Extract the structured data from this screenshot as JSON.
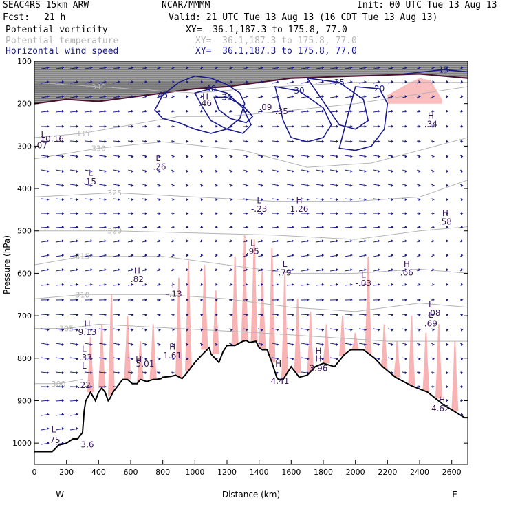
{
  "header": {
    "model": "SEAC4RS 15km ARW",
    "org": "NCAR/MMMM",
    "init": "Init: 00 UTC Tue 13 Aug 13",
    "fcst_label": "Fcst:",
    "fcst_value": "21 h",
    "valid": "Valid: 21 UTC Tue 13 Aug 13 (16 CDT Tue 13 Aug 13)"
  },
  "fields": [
    {
      "name": "Potential vorticity",
      "color": "#000000",
      "xy": "XY=  36.1,187.3 to 175.8, 77.0"
    },
    {
      "name": "Potential temperature",
      "color": "#b4b4b4",
      "xy": "XY=  36.1,187.3 to 175.8, 77.0"
    },
    {
      "name": "Horizontal wind speed",
      "color": "#1a1a8a",
      "xy": "XY=  36.1,187.3 to 175.8, 77.0"
    }
  ],
  "chart_data": {
    "type": "cross-section",
    "xlabel": "Distance (km)",
    "ylabel": "Pressure (hPa)",
    "xlim": [
      0,
      2700
    ],
    "ylim": [
      1050,
      100
    ],
    "x_ticks": [
      0,
      200,
      400,
      600,
      800,
      1000,
      1200,
      1400,
      1600,
      1800,
      2000,
      2200,
      2400,
      2600
    ],
    "y_ticks": [
      100,
      200,
      300,
      400,
      500,
      600,
      700,
      800,
      900,
      1000
    ],
    "west_label": "W",
    "east_label": "E",
    "colors": {
      "theta": "#b4b4b4",
      "wind": "#1a1a8a",
      "shading_pink": "#f8b4b4",
      "terrain": "#000000",
      "annotation": "#3a1a5a"
    },
    "terrain": [
      [
        0,
        1020
      ],
      [
        110,
        1020
      ],
      [
        125,
        1015
      ],
      [
        150,
        1005
      ],
      [
        200,
        1000
      ],
      [
        240,
        990
      ],
      [
        270,
        990
      ],
      [
        300,
        975
      ],
      [
        310,
        925
      ],
      [
        320,
        900
      ],
      [
        350,
        880
      ],
      [
        380,
        900
      ],
      [
        400,
        880
      ],
      [
        420,
        870
      ],
      [
        440,
        880
      ],
      [
        460,
        900
      ],
      [
        470,
        895
      ],
      [
        490,
        880
      ],
      [
        520,
        865
      ],
      [
        550,
        850
      ],
      [
        580,
        850
      ],
      [
        610,
        860
      ],
      [
        640,
        860
      ],
      [
        660,
        850
      ],
      [
        700,
        855
      ],
      [
        740,
        850
      ],
      [
        760,
        850
      ],
      [
        790,
        848
      ],
      [
        800,
        845
      ],
      [
        850,
        843
      ],
      [
        880,
        840
      ],
      [
        920,
        848
      ],
      [
        950,
        835
      ],
      [
        960,
        830
      ],
      [
        1000,
        810
      ],
      [
        1050,
        790
      ],
      [
        1090,
        775
      ],
      [
        1100,
        790
      ],
      [
        1150,
        810
      ],
      [
        1175,
        785
      ],
      [
        1200,
        770
      ],
      [
        1250,
        770
      ],
      [
        1300,
        760
      ],
      [
        1320,
        758
      ],
      [
        1340,
        763
      ],
      [
        1380,
        760
      ],
      [
        1400,
        775
      ],
      [
        1420,
        780
      ],
      [
        1450,
        780
      ],
      [
        1480,
        810
      ],
      [
        1510,
        845
      ],
      [
        1520,
        850
      ],
      [
        1550,
        850
      ],
      [
        1600,
        820
      ],
      [
        1650,
        845
      ],
      [
        1700,
        840
      ],
      [
        1750,
        820
      ],
      [
        1800,
        812
      ],
      [
        1870,
        820
      ],
      [
        1930,
        792
      ],
      [
        1970,
        780
      ],
      [
        2050,
        780
      ],
      [
        2120,
        800
      ],
      [
        2170,
        820
      ],
      [
        2250,
        845
      ],
      [
        2350,
        865
      ],
      [
        2450,
        880
      ],
      [
        2550,
        910
      ],
      [
        2680,
        940
      ],
      [
        2700,
        940
      ]
    ],
    "theta_contours": [
      {
        "label": "340",
        "points": [
          [
            0,
            150
          ],
          [
            400,
            160
          ],
          [
            1000,
            175
          ],
          [
            1500,
            160
          ],
          [
            2000,
            150
          ],
          [
            2700,
            150
          ]
        ]
      },
      {
        "label": "335",
        "points": [
          [
            0,
            280
          ],
          [
            300,
            270
          ],
          [
            600,
            250
          ],
          [
            900,
            230
          ],
          [
            1200,
            230
          ],
          [
            1500,
            220
          ],
          [
            2000,
            200
          ],
          [
            2700,
            160
          ]
        ]
      },
      {
        "label": "330",
        "points": [
          [
            0,
            330
          ],
          [
            400,
            305
          ],
          [
            800,
            290
          ],
          [
            1300,
            310
          ],
          [
            1700,
            350
          ],
          [
            2100,
            340
          ],
          [
            2700,
            280
          ]
        ]
      },
      {
        "label": "325",
        "points": [
          [
            0,
            420
          ],
          [
            500,
            410
          ],
          [
            1000,
            420
          ],
          [
            1500,
            430
          ],
          [
            2000,
            430
          ],
          [
            2400,
            420
          ],
          [
            2700,
            380
          ]
        ]
      },
      {
        "label": "320",
        "points": [
          [
            0,
            500
          ],
          [
            500,
            500
          ],
          [
            1000,
            505
          ],
          [
            1500,
            510
          ],
          [
            2000,
            520
          ],
          [
            2400,
            500
          ],
          [
            2700,
            490
          ]
        ]
      },
      {
        "label": "315",
        "points": [
          [
            0,
            580
          ],
          [
            300,
            560
          ],
          [
            800,
            560
          ],
          [
            1200,
            580
          ],
          [
            1600,
            600
          ],
          [
            2000,
            600
          ],
          [
            2400,
            590
          ],
          [
            2700,
            600
          ]
        ]
      },
      {
        "label": "310",
        "points": [
          [
            0,
            660
          ],
          [
            300,
            650
          ],
          [
            800,
            650
          ],
          [
            1200,
            660
          ],
          [
            1600,
            680
          ],
          [
            2000,
            690
          ],
          [
            2400,
            670
          ],
          [
            2700,
            680
          ]
        ]
      },
      {
        "label": "305",
        "points": [
          [
            0,
            730
          ],
          [
            200,
            730
          ],
          [
            400,
            720
          ],
          [
            900,
            730
          ],
          [
            1400,
            740
          ],
          [
            1800,
            750
          ],
          [
            2200,
            760
          ],
          [
            2700,
            760
          ]
        ]
      },
      {
        "label": "300",
        "points": [
          [
            0,
            860
          ],
          [
            150,
            860
          ],
          [
            300,
            850
          ]
        ]
      }
    ],
    "wind_speed_contours": [
      {
        "label": "45",
        "points": [
          [
            750,
            215
          ],
          [
            800,
            180
          ],
          [
            900,
            150
          ],
          [
            1000,
            135
          ],
          [
            1100,
            140
          ],
          [
            1200,
            155
          ],
          [
            1280,
            175
          ],
          [
            1310,
            200
          ],
          [
            1280,
            235
          ],
          [
            1200,
            260
          ],
          [
            1100,
            270
          ],
          [
            1000,
            260
          ],
          [
            900,
            245
          ],
          [
            800,
            235
          ]
        ]
      },
      {
        "label": "40",
        "points": [
          [
            1000,
            175
          ],
          [
            1100,
            165
          ],
          [
            1200,
            175
          ],
          [
            1300,
            210
          ],
          [
            1350,
            250
          ],
          [
            1300,
            270
          ],
          [
            1200,
            260
          ],
          [
            1100,
            240
          ],
          [
            1050,
            210
          ]
        ]
      },
      {
        "label": "35",
        "points": [
          [
            1120,
            185
          ],
          [
            1200,
            185
          ],
          [
            1300,
            205
          ],
          [
            1360,
            230
          ],
          [
            1320,
            245
          ],
          [
            1220,
            235
          ],
          [
            1150,
            215
          ]
        ]
      },
      {
        "label": "30",
        "points": [
          [
            1500,
            160
          ],
          [
            1650,
            170
          ],
          [
            1800,
            210
          ],
          [
            1850,
            250
          ],
          [
            1800,
            280
          ],
          [
            1700,
            290
          ],
          [
            1600,
            280
          ],
          [
            1550,
            240
          ]
        ]
      },
      {
        "label": "25",
        "points": [
          [
            1700,
            140
          ],
          [
            1900,
            150
          ],
          [
            2050,
            190
          ],
          [
            2080,
            240
          ],
          [
            2000,
            260
          ],
          [
            1900,
            250
          ]
        ]
      },
      {
        "label": "20",
        "points": [
          [
            2000,
            160
          ],
          [
            2150,
            165
          ],
          [
            2200,
            200
          ],
          [
            2180,
            260
          ],
          [
            2100,
            300
          ],
          [
            2000,
            310
          ],
          [
            1900,
            305
          ]
        ]
      },
      {
        "label": "15",
        "points": [
          [
            2300,
            130
          ],
          [
            2550,
            120
          ],
          [
            2700,
            125
          ]
        ]
      }
    ],
    "pv_high_region_top": [
      [
        0,
        100
      ],
      [
        2700,
        100
      ]
    ],
    "pv_high_region_bottom": [
      [
        0,
        200
      ],
      [
        200,
        190
      ],
      [
        400,
        195
      ],
      [
        600,
        185
      ],
      [
        800,
        175
      ],
      [
        1000,
        165
      ],
      [
        1200,
        160
      ],
      [
        1400,
        150
      ],
      [
        1600,
        140
      ],
      [
        2000,
        135
      ],
      [
        2400,
        130
      ],
      [
        2700,
        140
      ]
    ],
    "pink_regions": [
      {
        "x": [
          2200,
          2270,
          2340,
          2400,
          2470,
          2540
        ],
        "top": [
          180,
          165,
          150,
          140,
          145,
          190
        ]
      }
    ],
    "convective_columns": [
      {
        "x": 350,
        "top": 750,
        "bottom": 880
      },
      {
        "x": 420,
        "top": 720,
        "bottom": 870
      },
      {
        "x": 480,
        "top": 650,
        "bottom": 890
      },
      {
        "x": 580,
        "top": 700,
        "bottom": 850
      },
      {
        "x": 660,
        "top": 760,
        "bottom": 860
      },
      {
        "x": 740,
        "top": 720,
        "bottom": 850
      },
      {
        "x": 900,
        "top": 610,
        "bottom": 845
      },
      {
        "x": 960,
        "top": 570,
        "bottom": 830
      },
      {
        "x": 1060,
        "top": 580,
        "bottom": 780
      },
      {
        "x": 1130,
        "top": 640,
        "bottom": 790
      },
      {
        "x": 1250,
        "top": 560,
        "bottom": 770
      },
      {
        "x": 1310,
        "top": 510,
        "bottom": 762
      },
      {
        "x": 1370,
        "top": 520,
        "bottom": 762
      },
      {
        "x": 1420,
        "top": 590,
        "bottom": 778
      },
      {
        "x": 1480,
        "top": 540,
        "bottom": 810
      },
      {
        "x": 1560,
        "top": 600,
        "bottom": 850
      },
      {
        "x": 1640,
        "top": 660,
        "bottom": 835
      },
      {
        "x": 1720,
        "top": 690,
        "bottom": 840
      },
      {
        "x": 1820,
        "top": 720,
        "bottom": 812
      },
      {
        "x": 1920,
        "top": 700,
        "bottom": 795
      },
      {
        "x": 2000,
        "top": 740,
        "bottom": 780
      },
      {
        "x": 2080,
        "top": 560,
        "bottom": 790
      },
      {
        "x": 2180,
        "top": 720,
        "bottom": 830
      },
      {
        "x": 2260,
        "top": 760,
        "bottom": 845
      },
      {
        "x": 2350,
        "top": 700,
        "bottom": 865
      },
      {
        "x": 2440,
        "top": 740,
        "bottom": 880
      },
      {
        "x": 2520,
        "top": 720,
        "bottom": 895
      },
      {
        "x": 2620,
        "top": 760,
        "bottom": 925
      }
    ],
    "annotations": [
      {
        "text": "L",
        "x": 55,
        "y": 280
      },
      {
        "text": "10.16",
        "x": 110,
        "y": 290
      },
      {
        "text": ".07",
        "x": 40,
        "y": 305
      },
      {
        "text": "L",
        "x": 770,
        "y": 335
      },
      {
        "text": ".26",
        "x": 780,
        "y": 355
      },
      {
        "text": "L",
        "x": 350,
        "y": 370
      },
      {
        "text": ".15",
        "x": 345,
        "y": 390
      },
      {
        "text": "H",
        "x": 1065,
        "y": 190
      },
      {
        "text": ".46",
        "x": 1065,
        "y": 205
      },
      {
        "text": ".09",
        "x": 1440,
        "y": 215
      },
      {
        "text": ".35",
        "x": 1540,
        "y": 225
      },
      {
        "text": "L",
        "x": 1400,
        "y": 435
      },
      {
        "text": "-.23",
        "x": 1400,
        "y": 455
      },
      {
        "text": "H",
        "x": 1650,
        "y": 435
      },
      {
        "text": "1.26",
        "x": 1650,
        "y": 455
      },
      {
        "text": "H",
        "x": 2470,
        "y": 235
      },
      {
        "text": ".34",
        "x": 2470,
        "y": 255
      },
      {
        "text": "H",
        "x": 2560,
        "y": 465
      },
      {
        "text": ".58",
        "x": 2560,
        "y": 485
      },
      {
        "text": "L",
        "x": 1360,
        "y": 535
      },
      {
        "text": ".95",
        "x": 1360,
        "y": 555
      },
      {
        "text": "L",
        "x": 1560,
        "y": 585
      },
      {
        "text": ".79",
        "x": 1560,
        "y": 605
      },
      {
        "text": "H",
        "x": 2320,
        "y": 585
      },
      {
        "text": ".66",
        "x": 2320,
        "y": 605
      },
      {
        "text": "H",
        "x": 640,
        "y": 600
      },
      {
        "text": ".82",
        "x": 640,
        "y": 620
      },
      {
        "text": "L",
        "x": 2050,
        "y": 610
      },
      {
        "text": "-.03",
        "x": 2050,
        "y": 630
      },
      {
        "text": "L",
        "x": 870,
        "y": 635
      },
      {
        "text": "-.13",
        "x": 870,
        "y": 655
      },
      {
        "text": "L",
        "x": 2470,
        "y": 680
      },
      {
        "text": ".08",
        "x": 2490,
        "y": 700
      },
      {
        "text": "L",
        "x": 2470,
        "y": 705
      },
      {
        "text": ".69",
        "x": 2470,
        "y": 725
      },
      {
        "text": "H",
        "x": 330,
        "y": 725
      },
      {
        "text": "9.13",
        "x": 330,
        "y": 745
      },
      {
        "text": "L",
        "x": 310,
        "y": 785
      },
      {
        "text": "-.33",
        "x": 310,
        "y": 805
      },
      {
        "text": "H",
        "x": 860,
        "y": 780
      },
      {
        "text": "1.61",
        "x": 860,
        "y": 800
      },
      {
        "text": "H",
        "x": 1770,
        "y": 790
      },
      {
        "text": "H",
        "x": 1770,
        "y": 808
      },
      {
        "text": "3.96",
        "x": 1770,
        "y": 830
      },
      {
        "text": "H",
        "x": 650,
        "y": 810
      },
      {
        "text": "5.01",
        "x": 690,
        "y": 820
      },
      {
        "text": "L",
        "x": 310,
        "y": 825
      },
      {
        "text": ".22",
        "x": 310,
        "y": 870
      },
      {
        "text": "H",
        "x": 1520,
        "y": 820
      },
      {
        "text": "4.41",
        "x": 1530,
        "y": 860
      },
      {
        "text": "H",
        "x": 2540,
        "y": 905
      },
      {
        "text": "4.62",
        "x": 2530,
        "y": 925
      },
      {
        "text": "L",
        "x": 120,
        "y": 975
      },
      {
        "text": ".75",
        "x": 120,
        "y": 1000
      },
      {
        "text": "3.6",
        "x": 330,
        "y": 1010
      }
    ]
  }
}
